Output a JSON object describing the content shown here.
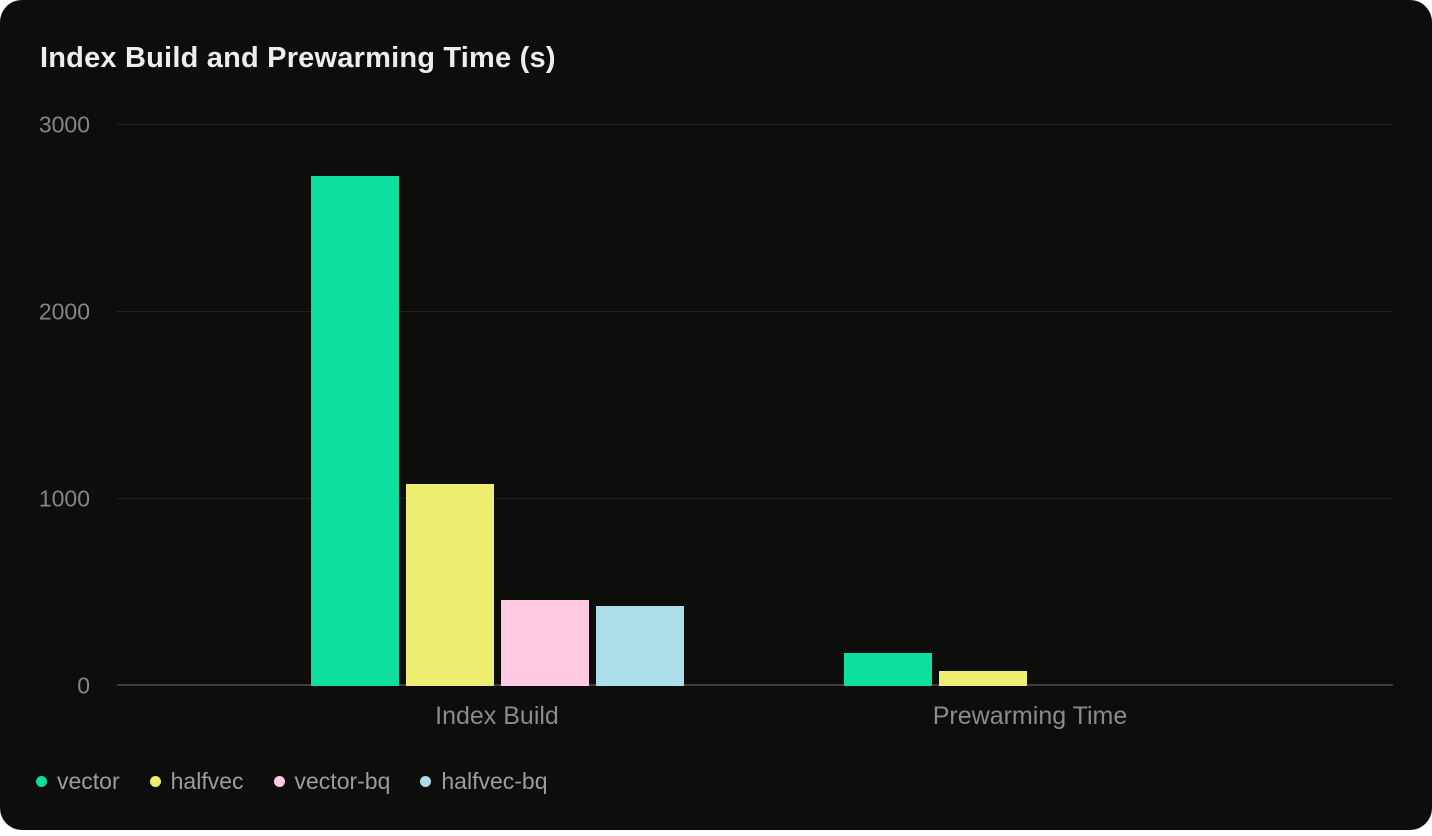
{
  "page": {
    "background_color": "#ffffff",
    "card_background_color": "#0d0d0c"
  },
  "chart_data": {
    "type": "bar",
    "title": "Index Build and Prewarming Time (s)",
    "categories": [
      "Index Build",
      "Prewarming Time"
    ],
    "series": [
      {
        "name": "vector",
        "color": "#0ddf9e",
        "values": [
          2730,
          175
        ]
      },
      {
        "name": "halfvec",
        "color": "#edee71",
        "values": [
          1080,
          80
        ]
      },
      {
        "name": "vector-bq",
        "color": "#fec9e1",
        "values": [
          460,
          0
        ]
      },
      {
        "name": "halfvec-bq",
        "color": "#abdee9",
        "values": [
          430,
          0
        ]
      }
    ],
    "xlabel": "",
    "ylabel": "",
    "ylim": [
      0,
      3000
    ],
    "yticks": [
      0,
      1000,
      2000,
      3000
    ],
    "grid": true,
    "legend_position": "bottom-left",
    "colors": {
      "grid_line": "#232323",
      "zero_line": "#3d3d3d",
      "tick_label": "#858585",
      "category_label": "#8b8b8e",
      "legend_label": "#9c9c9c",
      "title": "#ededed"
    }
  }
}
